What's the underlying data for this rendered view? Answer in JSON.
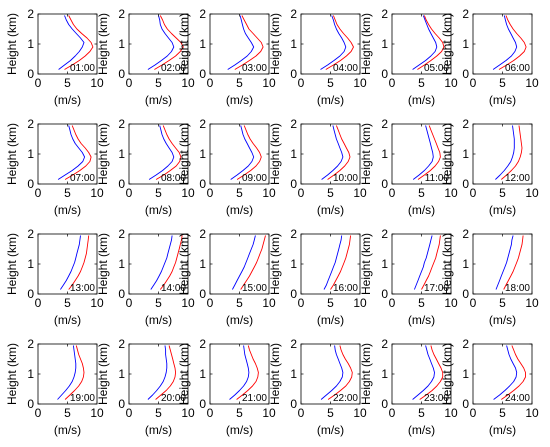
{
  "chart_data": {
    "type": "line",
    "layout": {
      "rows": 4,
      "cols": 6
    },
    "xlabel": "(m/s)",
    "ylabel": "Height (km)",
    "xlim": [
      0,
      10
    ],
    "ylim": [
      0,
      2
    ],
    "xticks": [
      0,
      5,
      10
    ],
    "yticks": [
      0,
      1,
      2
    ],
    "series_colors": [
      "#0000ff",
      "#ff0000"
    ],
    "heights_km": [
      0.15,
      0.3,
      0.45,
      0.6,
      0.75,
      0.9,
      1.05,
      1.2,
      1.35,
      1.5,
      1.65,
      1.8,
      1.95
    ],
    "panels": [
      {
        "label": "01:00",
        "series": [
          {
            "values": [
              3.5,
              4.5,
              5.5,
              6.3,
              7.0,
              7.5,
              7.8,
              7.2,
              6.5,
              5.8,
              5.2,
              4.8,
              4.5
            ]
          },
          {
            "values": [
              4.5,
              5.8,
              7.0,
              8.0,
              8.8,
              9.3,
              9.0,
              8.3,
              7.4,
              6.6,
              6.0,
              5.6,
              5.2
            ]
          }
        ]
      },
      {
        "label": "02:00",
        "series": [
          {
            "values": [
              3.2,
              4.4,
              5.5,
              6.5,
              7.2,
              7.6,
              7.3,
              6.7,
              6.1,
              5.6,
              5.3,
              5.2,
              5.0
            ]
          },
          {
            "values": [
              4.3,
              5.6,
              6.8,
              7.9,
              8.7,
              9.2,
              8.8,
              8.0,
              7.2,
              6.5,
              6.0,
              5.7,
              5.3
            ]
          }
        ]
      },
      {
        "label": "03:00",
        "series": [
          {
            "values": [
              3.0,
              4.2,
              5.3,
              6.3,
              7.0,
              7.4,
              7.0,
              6.5,
              6.0,
              5.7,
              5.5,
              5.3,
              5.1
            ]
          },
          {
            "values": [
              4.2,
              5.5,
              6.7,
              7.8,
              8.6,
              9.0,
              8.7,
              8.0,
              7.3,
              6.6,
              6.2,
              5.8,
              5.4
            ]
          }
        ]
      },
      {
        "label": "04:00",
        "series": [
          {
            "values": [
              3.3,
              4.5,
              5.6,
              6.6,
              7.3,
              7.6,
              7.3,
              6.9,
              6.4,
              6.0,
              5.7,
              5.5,
              5.2
            ]
          },
          {
            "values": [
              4.2,
              5.5,
              6.7,
              7.7,
              8.5,
              8.9,
              8.5,
              7.9,
              7.2,
              6.6,
              6.1,
              5.8,
              5.5
            ]
          }
        ]
      },
      {
        "label": "05:00",
        "series": [
          {
            "values": [
              3.5,
              4.6,
              5.7,
              6.6,
              7.3,
              7.6,
              7.4,
              7.0,
              6.6,
              6.2,
              5.9,
              5.6,
              5.3
            ]
          },
          {
            "values": [
              4.3,
              5.5,
              6.6,
              7.6,
              8.4,
              8.8,
              8.6,
              8.0,
              7.3,
              6.7,
              6.2,
              5.8,
              5.5
            ]
          }
        ]
      },
      {
        "label": "06:00",
        "series": [
          {
            "values": [
              3.4,
              4.5,
              5.6,
              6.5,
              7.1,
              7.4,
              7.2,
              6.8,
              6.4,
              6.0,
              5.7,
              5.5,
              5.3
            ]
          },
          {
            "values": [
              4.4,
              5.7,
              6.9,
              7.9,
              8.7,
              9.0,
              8.7,
              8.1,
              7.4,
              6.8,
              6.3,
              5.9,
              5.6
            ]
          }
        ]
      },
      {
        "label": "07:00",
        "series": [
          {
            "values": [
              3.4,
              4.6,
              5.8,
              6.8,
              7.6,
              7.9,
              7.5,
              6.9,
              6.3,
              5.9,
              5.6,
              5.4,
              5.2
            ]
          },
          {
            "values": [
              4.6,
              5.9,
              7.1,
              8.1,
              8.8,
              9.0,
              8.6,
              8.0,
              7.3,
              6.8,
              6.4,
              6.1,
              5.8
            ]
          }
        ]
      },
      {
        "label": "08:00",
        "series": [
          {
            "values": [
              3.4,
              4.6,
              5.7,
              6.6,
              7.3,
              7.6,
              7.3,
              6.8,
              6.3,
              5.9,
              5.6,
              5.4,
              5.2
            ]
          },
          {
            "values": [
              4.6,
              5.9,
              7.0,
              8.0,
              8.6,
              8.8,
              8.5,
              7.9,
              7.3,
              6.8,
              6.4,
              6.1,
              5.8
            ]
          }
        ]
      },
      {
        "label": "09:00",
        "series": [
          {
            "values": [
              3.5,
              4.6,
              5.6,
              6.5,
              7.1,
              7.4,
              7.1,
              6.7,
              6.3,
              5.9,
              5.6,
              5.4,
              5.2
            ]
          },
          {
            "values": [
              4.6,
              5.8,
              6.9,
              7.8,
              8.4,
              8.7,
              8.4,
              7.9,
              7.3,
              6.8,
              6.4,
              6.1,
              5.8
            ]
          }
        ]
      },
      {
        "label": "10:00",
        "series": [
          {
            "values": [
              3.5,
              4.5,
              5.4,
              6.2,
              6.8,
              7.1,
              6.9,
              6.6,
              6.3,
              6.0,
              5.8,
              5.6,
              5.4
            ]
          },
          {
            "values": [
              4.5,
              5.6,
              6.6,
              7.4,
              8.0,
              8.3,
              8.1,
              7.7,
              7.3,
              6.9,
              6.6,
              6.3,
              6.0
            ]
          }
        ]
      },
      {
        "label": "11:00",
        "series": [
          {
            "values": [
              3.6,
              4.6,
              5.5,
              6.2,
              6.8,
              7.0,
              6.9,
              6.7,
              6.5,
              6.3,
              6.1,
              5.9,
              5.7
            ]
          },
          {
            "values": [
              4.4,
              5.5,
              6.5,
              7.3,
              7.9,
              8.2,
              8.1,
              7.8,
              7.5,
              7.2,
              6.9,
              6.6,
              6.3
            ]
          }
        ]
      },
      {
        "label": "12:00",
        "series": [
          {
            "values": [
              3.8,
              4.6,
              5.3,
              5.9,
              6.4,
              6.7,
              6.9,
              7.0,
              7.0,
              7.0,
              6.9,
              6.8,
              6.7
            ]
          },
          {
            "values": [
              4.8,
              5.7,
              6.5,
              7.2,
              7.7,
              8.0,
              8.2,
              8.3,
              8.2,
              8.1,
              8.0,
              7.9,
              7.8
            ]
          }
        ]
      },
      {
        "label": "13:00",
        "series": [
          {
            "values": [
              3.8,
              4.3,
              4.8,
              5.2,
              5.6,
              5.9,
              6.2,
              6.4,
              6.6,
              6.8,
              7.0,
              7.1,
              7.2
            ]
          },
          {
            "values": [
              5.2,
              5.8,
              6.3,
              6.8,
              7.2,
              7.5,
              7.8,
              8.0,
              8.2,
              8.3,
              8.4,
              8.5,
              8.6
            ]
          }
        ]
      },
      {
        "label": "14:00",
        "series": [
          {
            "values": [
              3.7,
              4.2,
              4.7,
              5.1,
              5.5,
              5.8,
              6.1,
              6.4,
              6.6,
              6.8,
              7.0,
              7.2,
              7.3
            ]
          },
          {
            "values": [
              5.3,
              5.9,
              6.4,
              6.9,
              7.3,
              7.6,
              7.9,
              8.1,
              8.3,
              8.5,
              8.7,
              8.9,
              9.0
            ]
          }
        ]
      },
      {
        "label": "15:00",
        "series": [
          {
            "values": [
              3.8,
              4.2,
              4.6,
              5.0,
              5.4,
              5.8,
              6.1,
              6.4,
              6.7,
              7.0,
              7.3,
              7.5,
              7.7
            ]
          },
          {
            "values": [
              5.2,
              5.7,
              6.2,
              6.7,
              7.1,
              7.5,
              7.9,
              8.2,
              8.5,
              8.8,
              9.0,
              9.2,
              9.4
            ]
          }
        ]
      },
      {
        "label": "16:00",
        "series": [
          {
            "values": [
              3.9,
              4.3,
              4.6,
              4.9,
              5.2,
              5.5,
              5.8,
              6.0,
              6.2,
              6.4,
              6.6,
              6.8,
              6.9
            ]
          },
          {
            "values": [
              5.0,
              5.5,
              5.9,
              6.3,
              6.7,
              7.0,
              7.3,
              7.6,
              7.8,
              8.0,
              8.2,
              8.3,
              8.4
            ]
          }
        ]
      },
      {
        "label": "17:00",
        "series": [
          {
            "values": [
              3.8,
              4.1,
              4.4,
              4.7,
              5.0,
              5.3,
              5.5,
              5.8,
              6.0,
              6.2,
              6.4,
              6.6,
              6.8
            ]
          },
          {
            "values": [
              5.0,
              5.4,
              5.8,
              6.2,
              6.5,
              6.8,
              7.1,
              7.4,
              7.6,
              7.8,
              8.0,
              8.1,
              8.2
            ]
          }
        ]
      },
      {
        "label": "18:00",
        "series": [
          {
            "values": [
              3.9,
              4.2,
              4.5,
              4.8,
              5.1,
              5.4,
              5.7,
              5.9,
              6.1,
              6.3,
              6.5,
              6.6,
              6.8
            ]
          },
          {
            "values": [
              5.2,
              5.6,
              6.0,
              6.4,
              6.8,
              7.1,
              7.4,
              7.7,
              7.9,
              8.1,
              8.3,
              8.4,
              8.5
            ]
          }
        ]
      },
      {
        "label": "19:00",
        "series": [
          {
            "values": [
              3.3,
              4.0,
              4.7,
              5.3,
              5.8,
              6.1,
              6.3,
              6.4,
              6.4,
              6.3,
              6.2,
              6.1,
              6.0
            ]
          },
          {
            "values": [
              4.6,
              5.4,
              6.2,
              6.9,
              7.4,
              7.7,
              7.8,
              7.7,
              7.5,
              7.2,
              6.9,
              6.7,
              6.5
            ]
          }
        ]
      },
      {
        "label": "20:00",
        "series": [
          {
            "values": [
              3.2,
              4.0,
              4.7,
              5.3,
              5.8,
              6.1,
              6.3,
              6.4,
              6.4,
              6.3,
              6.2,
              6.2,
              6.1
            ]
          },
          {
            "values": [
              4.5,
              5.4,
              6.3,
              7.0,
              7.5,
              7.8,
              7.9,
              7.8,
              7.6,
              7.4,
              7.2,
              7.0,
              6.8
            ]
          }
        ]
      },
      {
        "label": "21:00",
        "series": [
          {
            "values": [
              3.3,
              4.2,
              5.0,
              5.7,
              6.2,
              6.5,
              6.6,
              6.5,
              6.3,
              6.1,
              5.9,
              5.8,
              5.7
            ]
          },
          {
            "values": [
              4.5,
              5.5,
              6.4,
              7.2,
              7.8,
              8.1,
              8.2,
              8.0,
              7.7,
              7.3,
              7.0,
              6.7,
              6.5
            ]
          }
        ]
      },
      {
        "label": "22:00",
        "series": [
          {
            "values": [
              3.4,
              4.3,
              5.2,
              6.0,
              6.6,
              7.0,
              7.1,
              6.9,
              6.6,
              6.3,
              6.0,
              5.8,
              5.7
            ]
          },
          {
            "values": [
              4.6,
              5.7,
              6.7,
              7.6,
              8.2,
              8.6,
              8.7,
              8.4,
              8.0,
              7.5,
              7.1,
              6.8,
              6.6
            ]
          }
        ]
      },
      {
        "label": "23:00",
        "series": [
          {
            "values": [
              3.5,
              4.4,
              5.3,
              6.1,
              6.7,
              7.1,
              7.2,
              7.0,
              6.7,
              6.4,
              6.1,
              5.9,
              5.7
            ]
          },
          {
            "values": [
              4.7,
              5.8,
              6.8,
              7.6,
              8.2,
              8.6,
              8.6,
              8.3,
              7.9,
              7.5,
              7.1,
              6.8,
              6.6
            ]
          }
        ]
      },
      {
        "label": "24:00",
        "series": [
          {
            "values": [
              3.5,
              4.5,
              5.4,
              6.2,
              6.9,
              7.3,
              7.4,
              7.2,
              6.8,
              6.4,
              6.1,
              5.9,
              5.7
            ]
          },
          {
            "values": [
              4.8,
              5.9,
              6.9,
              7.8,
              8.5,
              8.9,
              8.9,
              8.6,
              8.1,
              7.6,
              7.2,
              6.9,
              6.6
            ]
          }
        ]
      }
    ]
  }
}
